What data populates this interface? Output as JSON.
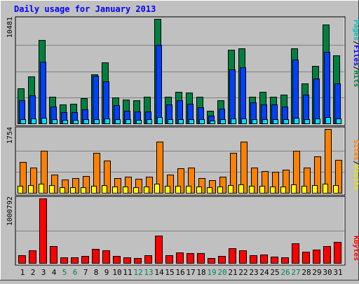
{
  "chart_data": {
    "type": "bar",
    "title": "Daily usage for January 2013",
    "days": [
      "1",
      "2",
      "3",
      "4",
      "5",
      "6",
      "7",
      "8",
      "9",
      "10",
      "11",
      "12",
      "13",
      "14",
      "15",
      "16",
      "17",
      "18",
      "19",
      "20",
      "21",
      "22",
      "23",
      "24",
      "25",
      "26",
      "27",
      "28",
      "29",
      "30",
      "31"
    ],
    "weekend_days": [
      "5",
      "6",
      "12",
      "13",
      "19",
      "20",
      "26",
      "27"
    ],
    "panels": [
      {
        "name": "hits-files-pages",
        "ymax_label": "10481",
        "ymax": 10481,
        "series": [
          {
            "name": "Hits",
            "color": "#008040",
            "values": [
              3500,
              4700,
              8400,
              2700,
              1900,
              2000,
              2500,
              4900,
              6100,
              2600,
              2400,
              2300,
              2700,
              10481,
              2700,
              3200,
              3100,
              2700,
              1300,
              2300,
              7400,
              7500,
              2700,
              3200,
              2700,
              2900,
              7500,
              4000,
              5800,
              9900,
              6800
            ]
          },
          {
            "name": "Files",
            "color": "#0040ff",
            "values": [
              2300,
              2800,
              6200,
              1700,
              1100,
              1100,
              1400,
              4800,
              4200,
              1800,
              1300,
              1200,
              1200,
              7900,
              1900,
              2300,
              2000,
              1600,
              800,
              1500,
              5400,
              5600,
              2100,
              1900,
              1900,
              1700,
              6400,
              2900,
              4500,
              7200,
              4000
            ]
          },
          {
            "name": "Pages",
            "color": "#00e0ff",
            "values": [
              400,
              500,
              550,
              450,
              350,
              350,
              400,
              450,
              500,
              400,
              400,
              350,
              400,
              600,
              450,
              450,
              400,
              400,
              300,
              400,
              500,
              500,
              450,
              450,
              400,
              400,
              550,
              450,
              500,
              650,
              500
            ]
          }
        ]
      },
      {
        "name": "sites-visits",
        "ymax_label": "1754",
        "ymax": 1754,
        "series": [
          {
            "name": "Sites",
            "color": "#ff8000",
            "values": [
              850,
              700,
              1150,
              500,
              370,
              410,
              470,
              1100,
              880,
              410,
              450,
              390,
              440,
              1400,
              510,
              670,
              700,
              400,
              350,
              450,
              1100,
              1400,
              700,
              600,
              570,
              630,
              1150,
              700,
              1000,
              1754,
              900
            ]
          },
          {
            "name": "Visits",
            "color": "#ffff00",
            "values": [
              200,
              210,
              260,
              210,
              160,
              150,
              160,
              200,
              220,
              180,
              170,
              150,
              170,
              260,
              190,
              190,
              190,
              170,
              150,
              170,
              220,
              230,
              200,
              190,
              180,
              180,
              230,
              190,
              210,
              260,
              220
            ]
          }
        ]
      },
      {
        "name": "kbytes",
        "ymax_label": "1000792",
        "ymax": 1000792,
        "series": [
          {
            "name": "KBytes",
            "color": "#ff0000",
            "values": [
              125000,
              195000,
              1000792,
              265000,
              85000,
              85000,
              110000,
              220000,
              195000,
              110000,
              90000,
              75000,
              120000,
              420000,
              120000,
              165000,
              150000,
              155000,
              75000,
              110000,
              225000,
              200000,
              120000,
              130000,
              95000,
              90000,
              310000,
              175000,
              205000,
              265000,
              330000
            ]
          }
        ]
      }
    ],
    "legend_panel1": {
      "pages": {
        "text": "Pages",
        "color": "#00c0c0"
      },
      "sep1": {
        "text": "/",
        "color": "#000000"
      },
      "files": {
        "text": "Files",
        "color": "#0000ff"
      },
      "sep2": {
        "text": "/",
        "color": "#000000"
      },
      "hits": {
        "text": "Hits",
        "color": "#008040"
      }
    },
    "legend_panel2": {
      "sites": {
        "text": "Sites",
        "color": "#ff8000"
      },
      "sep": {
        "text": "/",
        "color": "#000000"
      },
      "visits": {
        "text": "Visits",
        "color": "#ffff00"
      }
    },
    "legend_panel3": {
      "kbytes": {
        "text": "KBytes",
        "color": "#ff0000"
      }
    }
  }
}
